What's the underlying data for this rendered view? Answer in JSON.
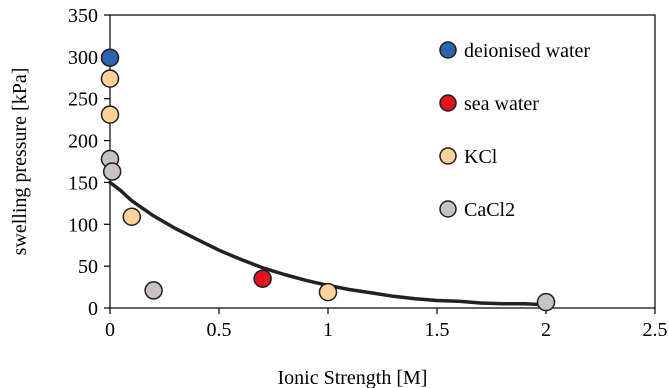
{
  "chart_data": {
    "type": "scatter",
    "xlabel": "Ionic Strength [M]",
    "ylabel": "swelling pressure [kPa]",
    "xlim": [
      0,
      2.5
    ],
    "ylim": [
      0,
      350
    ],
    "x_ticks": [
      0,
      0.5,
      1,
      1.5,
      2,
      2.5
    ],
    "y_ticks": [
      0,
      50,
      100,
      150,
      200,
      250,
      300,
      350
    ],
    "x_tick_labels": [
      "0",
      "0.5",
      "1",
      "1.5",
      "2",
      "2.5"
    ],
    "y_tick_labels": [
      "0",
      "50",
      "100",
      "150",
      "200",
      "250",
      "300",
      "350"
    ],
    "grid": false,
    "legend_position": "top-right",
    "series": [
      {
        "name": "deionised water",
        "color": "#2f62b0",
        "points": [
          [
            0,
            299
          ]
        ]
      },
      {
        "name": "sea water",
        "color": "#e0141e",
        "points": [
          [
            0.7,
            35
          ]
        ]
      },
      {
        "name": "KCl",
        "color": "#fcd29a",
        "points": [
          [
            0,
            274
          ],
          [
            0,
            231
          ],
          [
            0.1,
            109
          ],
          [
            1.0,
            19
          ]
        ]
      },
      {
        "name": "CaCl2",
        "color": "#c8c2c0",
        "points": [
          [
            0,
            178
          ],
          [
            0.01,
            163
          ],
          [
            0.2,
            21
          ],
          [
            2.0,
            7
          ]
        ]
      }
    ],
    "trend_line": {
      "color": "#222222",
      "points": [
        [
          0,
          150
        ],
        [
          0.05,
          140
        ],
        [
          0.1,
          128
        ],
        [
          0.2,
          110
        ],
        [
          0.3,
          95
        ],
        [
          0.4,
          82
        ],
        [
          0.5,
          69
        ],
        [
          0.6,
          58
        ],
        [
          0.7,
          48
        ],
        [
          0.8,
          40
        ],
        [
          0.9,
          33
        ],
        [
          1.0,
          27
        ],
        [
          1.1,
          22
        ],
        [
          1.2,
          18
        ],
        [
          1.3,
          14
        ],
        [
          1.4,
          11
        ],
        [
          1.5,
          9
        ],
        [
          1.6,
          8
        ],
        [
          1.7,
          6
        ],
        [
          1.8,
          5
        ],
        [
          1.9,
          5
        ],
        [
          2.0,
          4
        ]
      ]
    }
  }
}
